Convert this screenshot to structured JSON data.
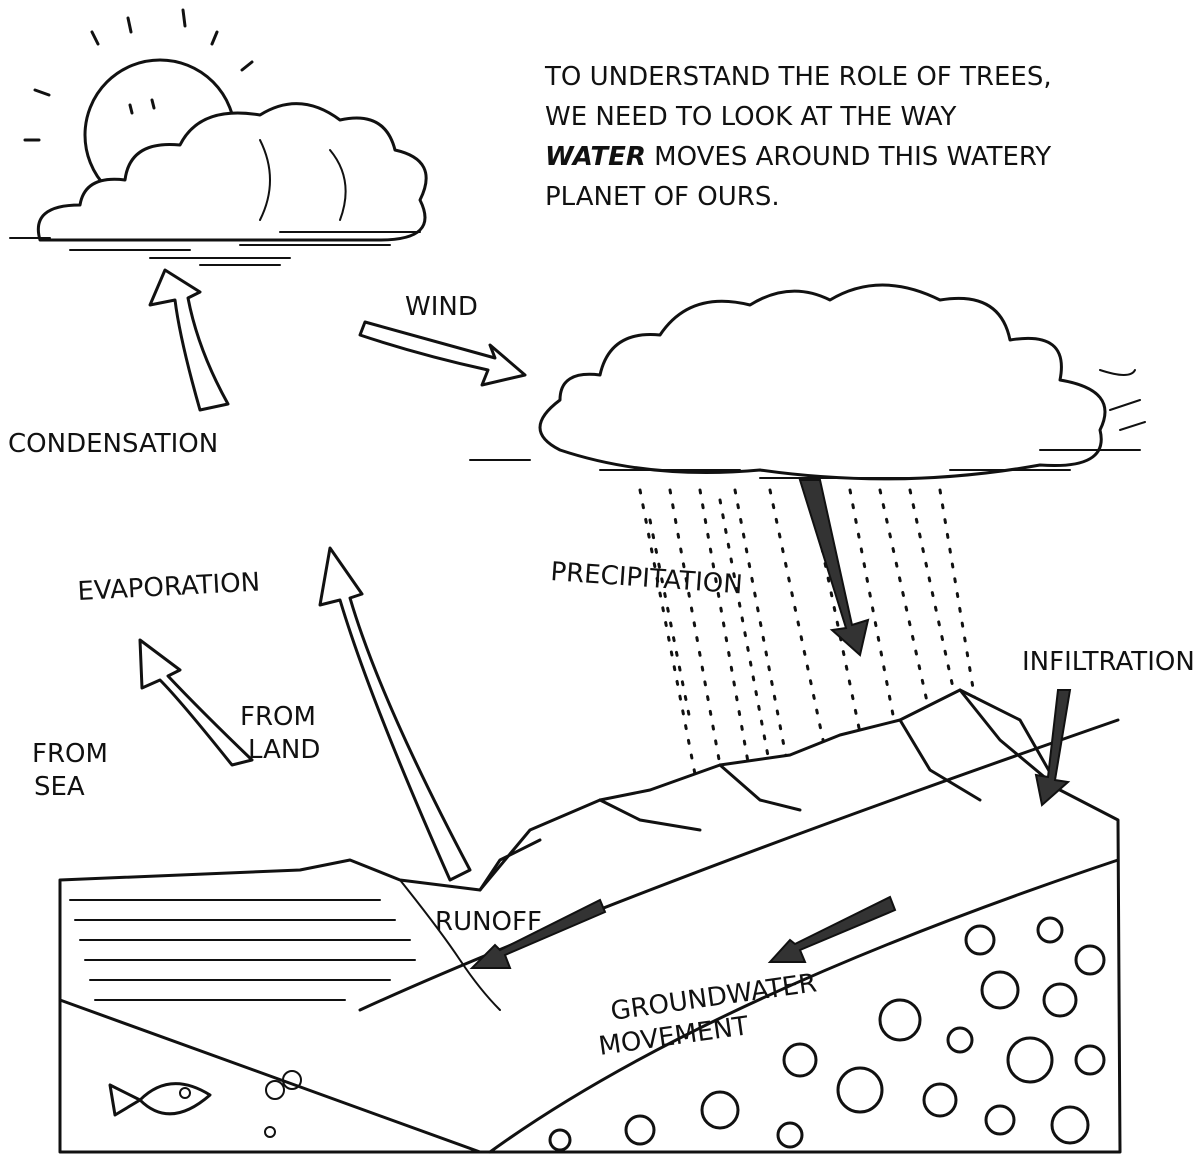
{
  "intro": {
    "line1": "TO UNDERSTAND THE ROLE OF TREES,",
    "line2": "WE NEED TO LOOK AT THE WAY",
    "emphasis": "WATER",
    "line3": "MOVES AROUND THIS WATERY",
    "line4": "PLANET OF OURS."
  },
  "labels": {
    "condensation": "CONDENSATION",
    "wind": "WIND",
    "precipitation": "PRECIPITATION",
    "evaporation": "EVAPORATION",
    "from_land": [
      "FROM",
      "LAND"
    ],
    "from_sea": [
      "FROM",
      "SEA"
    ],
    "infiltration": "INFILTRATION",
    "runoff": "RUNOFF",
    "groundwater": [
      "GROUNDWATER",
      "MOVEMENT"
    ]
  }
}
